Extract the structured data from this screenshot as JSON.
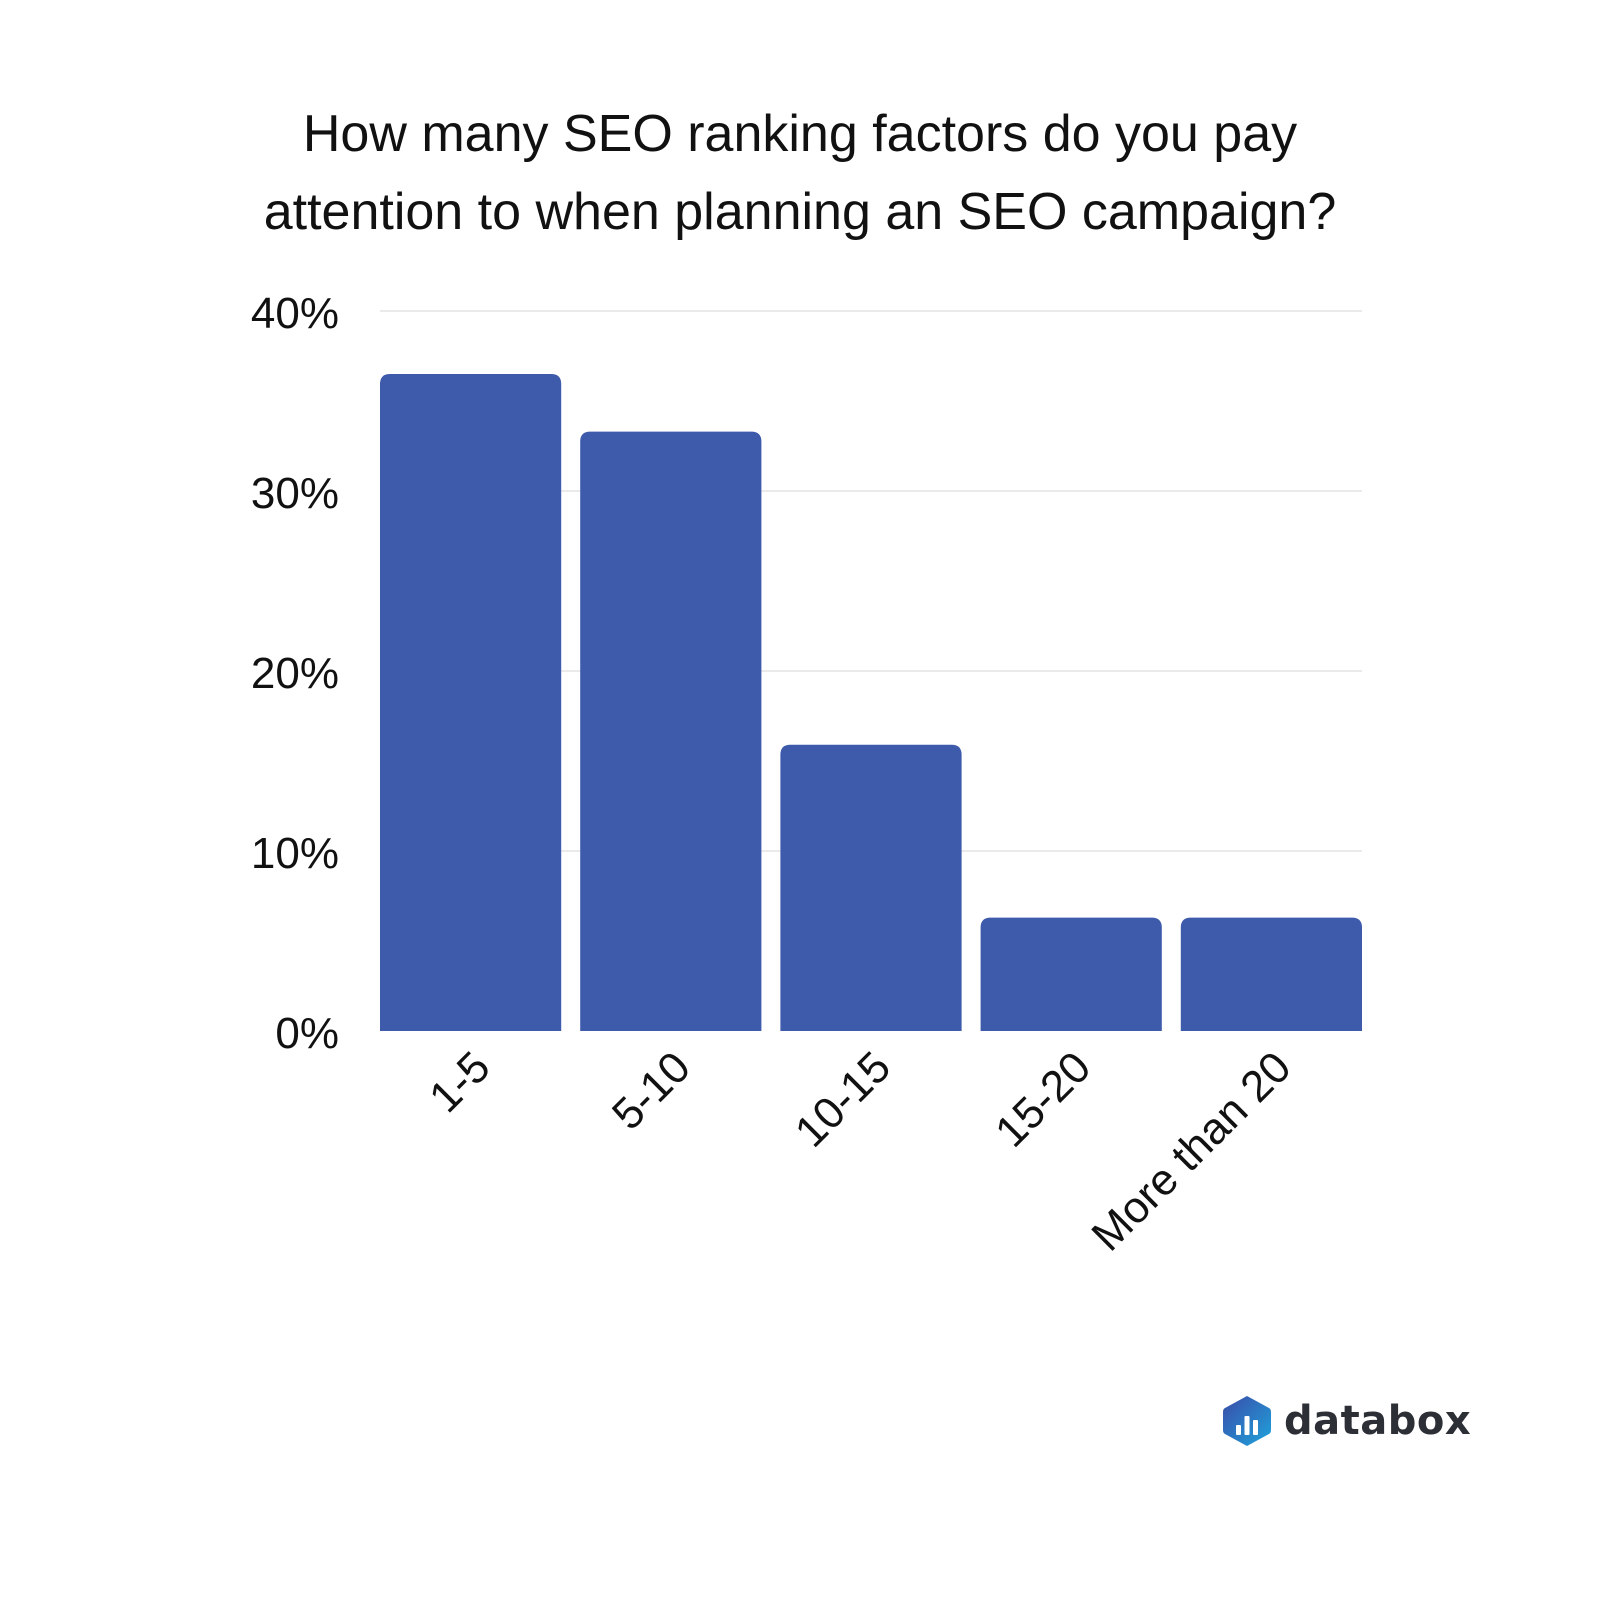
{
  "chart_data": {
    "type": "bar",
    "title_lines": [
      "How many SEO ranking factors do you pay",
      "attention to when planning an SEO campaign?"
    ],
    "categories": [
      "1-5",
      "5-10",
      "10-15",
      "15-20",
      "More than 20"
    ],
    "values": [
      36.5,
      33.3,
      15.9,
      6.3,
      6.3
    ],
    "ylim": [
      0,
      40
    ],
    "yticks": [
      0,
      10,
      20,
      30,
      40
    ],
    "ytick_labels": [
      "0%",
      "10%",
      "20%",
      "30%",
      "40%"
    ],
    "xlabel": "",
    "ylabel": "",
    "grid": true,
    "bar_color": "#3d5aab",
    "grid_color": "#e3e3e3"
  },
  "branding": {
    "logo_text": "databox",
    "logo_icon": "databox-hexagon-chart-icon"
  }
}
